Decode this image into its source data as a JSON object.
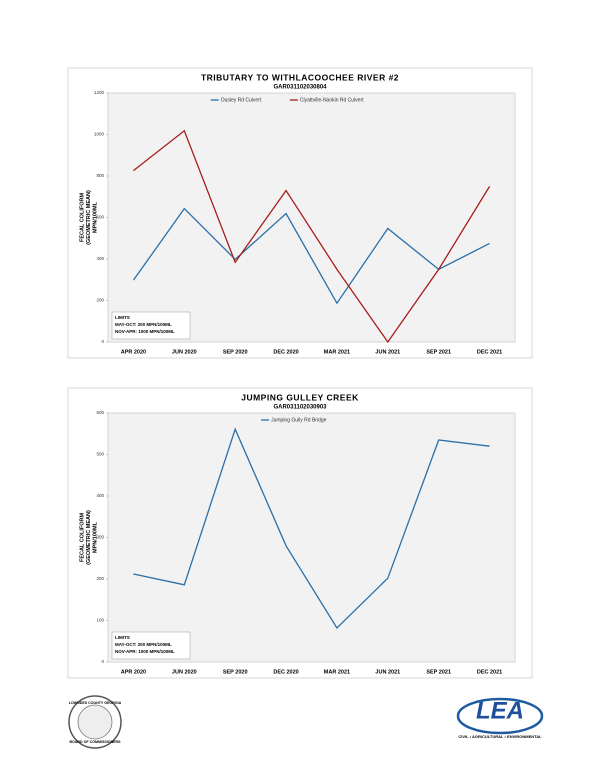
{
  "chart_data": [
    {
      "type": "line",
      "title": "TRIBUTARY TO WITHLACOOCHEE RIVER #2",
      "subtitle": "GAR031102030804",
      "ylabel": [
        "FECAL COLIFORM",
        "(GEOMETRIC MEAN)",
        "MPN/100ML"
      ],
      "categories": [
        "APR 2020",
        "JUN 2020",
        "SEP 2020",
        "DEC 2020",
        "MAR 2021",
        "JUN 2021",
        "SEP 2021",
        "DEC 2021"
      ],
      "series": [
        {
          "name": "Ousley Rd Culvert",
          "color": "#2a6fa8",
          "values": [
            298,
            643,
            398,
            619,
            187,
            547,
            350,
            475
          ]
        },
        {
          "name": "Clyattville-Nankin Rd Culvert",
          "color": "#a61e1a",
          "values": [
            826,
            1018,
            384,
            730,
            350,
            0,
            350,
            750
          ]
        }
      ],
      "ylim": [
        0,
        1200
      ],
      "yticks": [
        0,
        200,
        400,
        600,
        800,
        1000,
        1200
      ],
      "annotation": [
        "LIMITS",
        "MAY-OCT: 200 MPN/100ML",
        "NOV-APR: 1000 MPN/100ML"
      ]
    },
    {
      "type": "line",
      "title": "JUMPING GULLEY CREEK",
      "subtitle": "GAR031102030903",
      "ylabel": [
        "FECAL COLIFORM",
        "(GEOMETRIC MEAN)",
        "MPN/100ML"
      ],
      "categories": [
        "APR 2020",
        "JUN 2020",
        "SEP 2020",
        "DEC 2020",
        "MAR 2021",
        "JUN 2021",
        "SEP 2021",
        "DEC 2021"
      ],
      "series": [
        {
          "name": "Jumping Gully Rd Bridge",
          "color": "#2a6fa8",
          "values": [
            212,
            186,
            561,
            280,
            82,
            202,
            535,
            520
          ]
        }
      ],
      "ylim": [
        0,
        600
      ],
      "yticks": [
        0,
        100,
        200,
        300,
        400,
        500,
        600
      ],
      "annotation": [
        "LIMITS",
        "MAY-OCT: 200 MPN/100ML",
        "NOV-APR: 1000 MPN/100ML"
      ]
    }
  ],
  "logos": {
    "seal": [
      "LOWNDES COUNTY GEORGIA",
      "BOARD OF COMMISSIONERS"
    ],
    "lea": "LEA",
    "lea_tagline": "CIVIL • AGRICULTURAL • ENVIRONMENTAL"
  }
}
